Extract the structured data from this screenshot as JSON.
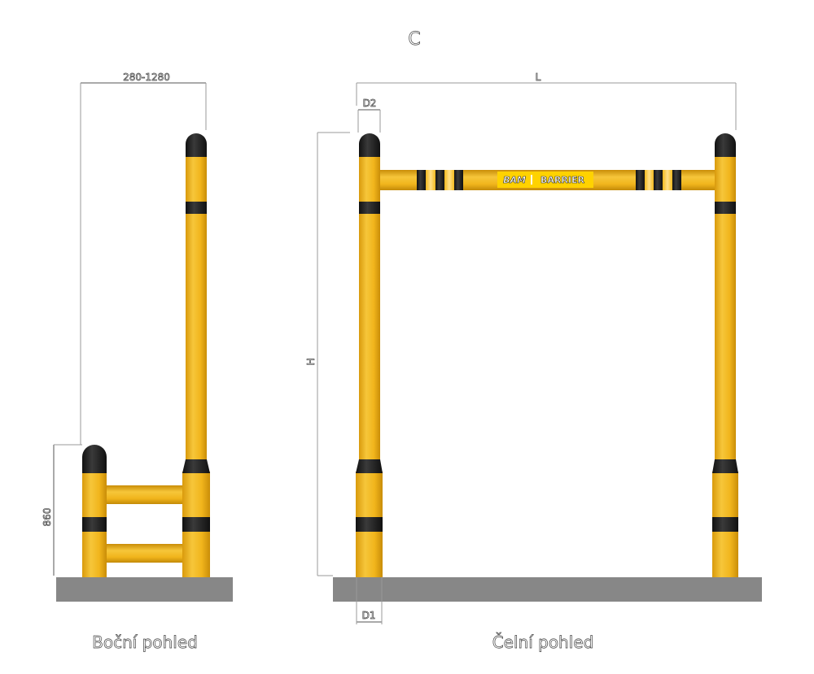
{
  "title": "C",
  "views": {
    "side": {
      "label": "Boční pohled",
      "width_dim": "280-1280",
      "height_dim": "860"
    },
    "front": {
      "label": "Čelní pohled",
      "length_dim": "L",
      "height_dim": "H",
      "top_diameter_dim": "D2",
      "bottom_diameter_dim": "D1"
    }
  },
  "logo": {
    "brand": "BAM",
    "product": "BARRIER"
  },
  "colors": {
    "yellow": "#f2b91e",
    "black": "#1e1e1e",
    "ground": "#878787",
    "logo_bg": "#ffd200"
  }
}
